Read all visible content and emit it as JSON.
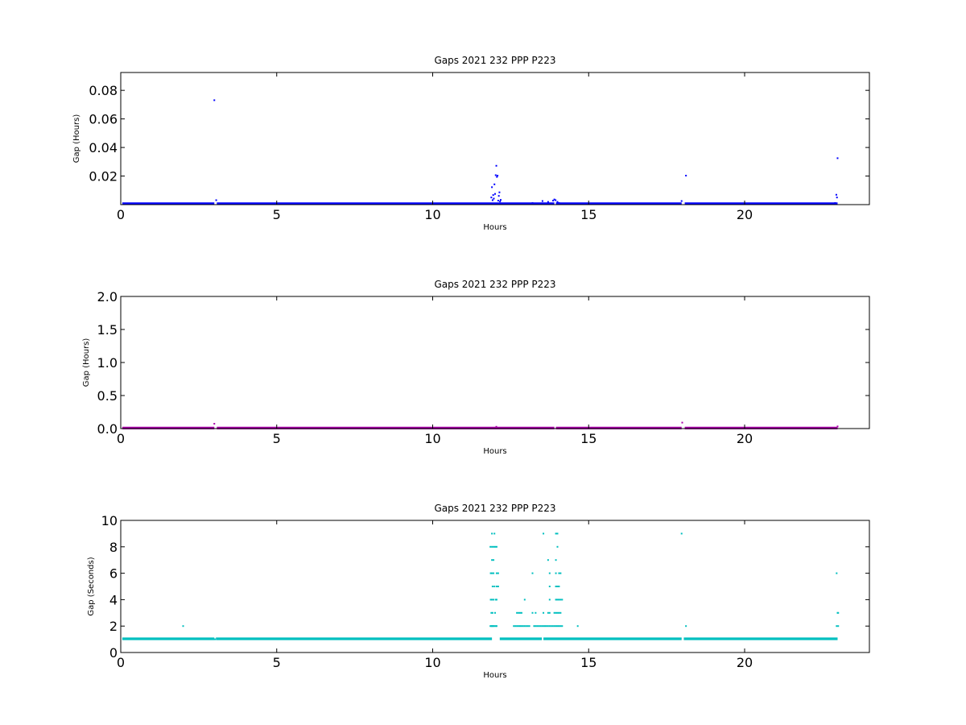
{
  "figure": {
    "background": "#ffffff"
  },
  "chart_data": [
    {
      "type": "scatter",
      "title": "Gaps 2021 232 PPP  P223",
      "xlabel": "Hours",
      "ylabel": "Gap (Hours)",
      "xlim": [
        0,
        24
      ],
      "ylim": [
        0,
        0.0925
      ],
      "xticks": [
        "0",
        "5",
        "10",
        "15",
        "20"
      ],
      "yticks": [
        "0.02",
        "0.04",
        "0.06",
        "0.08"
      ],
      "grid": false,
      "color": "#0000ff",
      "series": [
        {
          "baseline": {
            "x_ranges": [
              [
                0.05,
                3.0
              ],
              [
                3.08,
                13.9
              ],
              [
                13.95,
                17.98
              ],
              [
                18.08,
                22.98
              ]
            ],
            "y": 0.00028
          },
          "points": [
            [
              3.0,
              0.0731
            ],
            [
              3.06,
              0.0031
            ],
            [
              11.88,
              0.005
            ],
            [
              11.9,
              0.0122
            ],
            [
              11.92,
              0.0031
            ],
            [
              11.94,
              0.0067
            ],
            [
              11.96,
              0.0042
            ],
            [
              11.98,
              0.0142
            ],
            [
              12.0,
              0.0075
            ],
            [
              12.02,
              0.0206
            ],
            [
              12.04,
              0.0272
            ],
            [
              12.06,
              0.0194
            ],
            [
              12.08,
              0.0203
            ],
            [
              12.1,
              0.0028
            ],
            [
              12.12,
              0.0061
            ],
            [
              12.14,
              0.0086
            ],
            [
              12.16,
              0.0022
            ],
            [
              12.18,
              0.0033
            ],
            [
              13.2,
              0.0011
            ],
            [
              13.52,
              0.0025
            ],
            [
              13.7,
              0.0019
            ],
            [
              13.86,
              0.0028
            ],
            [
              13.9,
              0.0036
            ],
            [
              13.94,
              0.0031
            ],
            [
              14.0,
              0.0019
            ],
            [
              14.05,
              0.0011
            ],
            [
              17.98,
              0.0025
            ],
            [
              18.12,
              0.0203
            ],
            [
              22.9,
              0.0011
            ],
            [
              22.94,
              0.0069
            ],
            [
              22.96,
              0.005
            ],
            [
              22.98,
              0.0325
            ]
          ]
        }
      ]
    },
    {
      "type": "scatter",
      "title": "Gaps 2021 232 PPP  P223",
      "xlabel": "Hours",
      "ylabel": "Gap (Hours)",
      "xlim": [
        0,
        24
      ],
      "ylim": [
        0,
        2.0
      ],
      "xticks": [
        "0",
        "5",
        "10",
        "15",
        "20"
      ],
      "yticks": [
        "0.0",
        "0.5",
        "1.0",
        "1.5",
        "2.0"
      ],
      "grid": false,
      "color": "#aa00aa",
      "series": [
        {
          "baseline": {
            "x_ranges": [
              [
                0.05,
                3.0
              ],
              [
                3.08,
                13.9
              ],
              [
                13.95,
                17.98
              ],
              [
                18.08,
                22.98
              ]
            ],
            "y": 0.0003
          },
          "points": [
            [
              3.0,
              0.073
            ],
            [
              12.04,
              0.027
            ],
            [
              18.0,
              0.09
            ],
            [
              22.98,
              0.032
            ]
          ]
        }
      ]
    },
    {
      "type": "scatter",
      "title": "Gaps 2021 232 PPP  P223",
      "xlabel": "Hours",
      "ylabel": "Gap (Seconds)",
      "xlim": [
        0,
        24
      ],
      "ylim": [
        0,
        10
      ],
      "xticks": [
        "0",
        "5",
        "10",
        "15",
        "20"
      ],
      "yticks": [
        "0",
        "2",
        "4",
        "6",
        "8",
        "10"
      ],
      "grid": false,
      "color": "#00bfbf",
      "series": [
        {
          "baseline": {
            "x_ranges": [
              [
                0.05,
                3.0
              ],
              [
                3.05,
                11.9
              ],
              [
                12.15,
                13.5
              ],
              [
                13.55,
                17.98
              ],
              [
                18.05,
                22.98
              ]
            ],
            "y": 1
          },
          "points": [
            [
              2.0,
              2
            ],
            [
              3.02,
              1
            ],
            [
              11.85,
              2
            ],
            [
              11.88,
              2
            ],
            [
              11.9,
              2
            ],
            [
              11.92,
              2
            ],
            [
              11.95,
              2
            ],
            [
              11.98,
              2
            ],
            [
              12.02,
              2
            ],
            [
              12.05,
              2
            ],
            [
              11.88,
              3
            ],
            [
              11.92,
              3
            ],
            [
              12.0,
              3
            ],
            [
              11.86,
              4
            ],
            [
              11.9,
              4
            ],
            [
              11.95,
              4
            ],
            [
              12.02,
              4
            ],
            [
              12.05,
              4
            ],
            [
              11.92,
              5
            ],
            [
              11.98,
              5
            ],
            [
              12.05,
              5
            ],
            [
              12.1,
              5
            ],
            [
              11.86,
              6
            ],
            [
              11.9,
              6
            ],
            [
              11.95,
              6
            ],
            [
              12.05,
              6
            ],
            [
              12.1,
              6
            ],
            [
              11.9,
              7
            ],
            [
              11.95,
              7
            ],
            [
              11.85,
              8
            ],
            [
              11.9,
              8
            ],
            [
              11.95,
              8
            ],
            [
              12.0,
              8
            ],
            [
              12.05,
              8
            ],
            [
              11.9,
              9
            ],
            [
              11.98,
              9
            ],
            [
              12.6,
              2
            ],
            [
              12.65,
              2
            ],
            [
              12.7,
              2
            ],
            [
              12.75,
              2
            ],
            [
              12.8,
              2
            ],
            [
              12.85,
              2
            ],
            [
              12.9,
              2
            ],
            [
              12.95,
              2
            ],
            [
              13.0,
              2
            ],
            [
              13.05,
              2
            ],
            [
              13.1,
              2
            ],
            [
              13.25,
              2
            ],
            [
              13.3,
              2
            ],
            [
              13.35,
              2
            ],
            [
              13.4,
              2
            ],
            [
              13.45,
              2
            ],
            [
              13.5,
              2
            ],
            [
              13.55,
              2
            ],
            [
              13.6,
              2
            ],
            [
              13.65,
              2
            ],
            [
              13.7,
              2
            ],
            [
              13.75,
              2
            ],
            [
              13.8,
              2
            ],
            [
              13.85,
              2
            ],
            [
              13.9,
              2
            ],
            [
              13.95,
              2
            ],
            [
              14.0,
              2
            ],
            [
              14.05,
              2
            ],
            [
              14.1,
              2
            ],
            [
              14.15,
              2
            ],
            [
              14.65,
              2
            ],
            [
              18.12,
              2
            ],
            [
              12.7,
              3
            ],
            [
              12.75,
              3
            ],
            [
              12.8,
              3
            ],
            [
              12.85,
              3
            ],
            [
              13.2,
              3
            ],
            [
              13.3,
              3
            ],
            [
              13.55,
              3
            ],
            [
              13.7,
              3
            ],
            [
              13.75,
              3
            ],
            [
              13.9,
              3
            ],
            [
              13.95,
              3
            ],
            [
              14.0,
              3
            ],
            [
              14.05,
              3
            ],
            [
              14.1,
              3
            ],
            [
              12.95,
              4
            ],
            [
              13.75,
              4
            ],
            [
              13.95,
              4
            ],
            [
              14.0,
              4
            ],
            [
              14.05,
              4
            ],
            [
              14.1,
              4
            ],
            [
              14.15,
              4
            ],
            [
              13.75,
              5
            ],
            [
              13.95,
              5
            ],
            [
              14.0,
              5
            ],
            [
              14.05,
              5
            ],
            [
              13.2,
              6
            ],
            [
              13.75,
              6
            ],
            [
              13.95,
              6
            ],
            [
              14.05,
              6
            ],
            [
              14.1,
              6
            ],
            [
              13.7,
              7
            ],
            [
              13.95,
              7
            ],
            [
              14.0,
              8
            ],
            [
              13.55,
              9
            ],
            [
              13.95,
              9
            ],
            [
              14.0,
              9
            ],
            [
              17.98,
              9
            ],
            [
              22.95,
              2
            ],
            [
              23.0,
              2
            ],
            [
              22.98,
              3
            ],
            [
              23.0,
              3
            ],
            [
              22.95,
              6
            ]
          ]
        }
      ]
    }
  ]
}
